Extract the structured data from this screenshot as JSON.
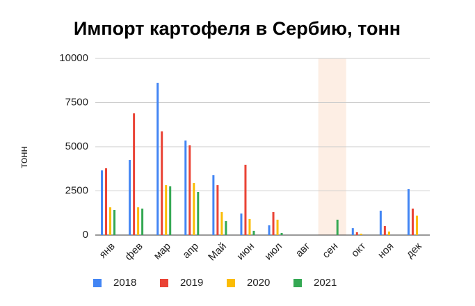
{
  "chart_data": {
    "type": "bar",
    "title": "Импорт картофеля в Сербию, тонн",
    "y_label": "тонн",
    "categories": [
      "янв",
      "фев",
      "мар",
      "апр",
      "Май",
      "июн",
      "июл",
      "авг",
      "сен",
      "окт",
      "ноя",
      "дек"
    ],
    "series": [
      {
        "name": "2018",
        "color": "#4285f4",
        "values": [
          3660,
          4250,
          8620,
          5350,
          3390,
          1220,
          550,
          0,
          0,
          390,
          1380,
          2600
        ]
      },
      {
        "name": "2019",
        "color": "#ea4335",
        "values": [
          3780,
          6890,
          5870,
          5080,
          2830,
          3980,
          1300,
          0,
          0,
          160,
          510,
          1500
        ]
      },
      {
        "name": "2020",
        "color": "#fbbc04",
        "values": [
          1570,
          1570,
          2830,
          2950,
          1300,
          910,
          870,
          0,
          0,
          80,
          200,
          1100
        ]
      },
      {
        "name": "2021",
        "color": "#34a853",
        "values": [
          1420,
          1500,
          2760,
          2440,
          790,
          240,
          120,
          0,
          870,
          0,
          0,
          0
        ]
      }
    ],
    "ylim": [
      0,
      10000
    ],
    "yticks": [
      0,
      2500,
      5000,
      7500,
      10000
    ],
    "grid": true,
    "highlight_index": 8,
    "highlight_color": "#fdeee4",
    "legend": "bottom"
  }
}
